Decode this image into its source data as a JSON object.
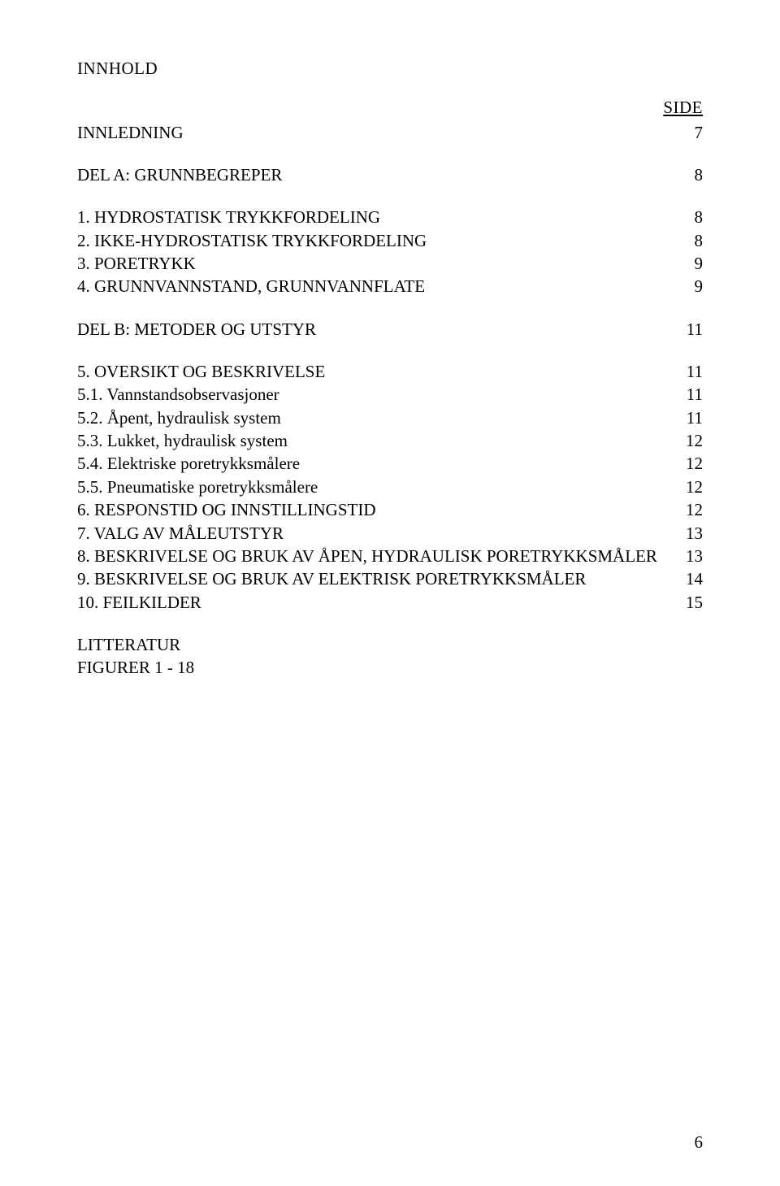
{
  "title": "INNHOLD",
  "side_label": "SIDE",
  "toc": {
    "innledning": {
      "label": "INNLEDNING",
      "page": "7"
    },
    "del_a": {
      "label": "DEL A:  GRUNNBEGREPER",
      "page": "8"
    },
    "a1": {
      "label": "1. HYDROSTATISK TRYKKFORDELING",
      "page": "8"
    },
    "a2": {
      "label": "2. IKKE-HYDROSTATISK TRYKKFORDELING",
      "page": "8"
    },
    "a3": {
      "label": "3. PORETRYKK",
      "page": "9"
    },
    "a4": {
      "label": "4. GRUNNVANNSTAND, GRUNNVANNFLATE",
      "page": "9"
    },
    "del_b": {
      "label": "DEL B:  METODER OG UTSTYR",
      "page": "11"
    },
    "b5": {
      "label": "5. OVERSIKT OG BESKRIVELSE",
      "page": "11"
    },
    "b5_1": {
      "label": "5.1. Vannstandsobservasjoner",
      "page": "11"
    },
    "b5_2": {
      "label": "5.2. Åpent, hydraulisk system",
      "page": "11"
    },
    "b5_3": {
      "label": "5.3. Lukket, hydraulisk system",
      "page": "12"
    },
    "b5_4": {
      "label": "5.4. Elektriske poretrykksmålere",
      "page": "12"
    },
    "b5_5": {
      "label": "5.5. Pneumatiske poretrykksmålere",
      "page": "12"
    },
    "b6": {
      "label": "6. RESPONSTID OG INNSTILLINGSTID",
      "page": "12"
    },
    "b7": {
      "label": "7. VALG AV MÅLEUTSTYR",
      "page": "13"
    },
    "b8": {
      "label": "8. BESKRIVELSE OG BRUK AV ÅPEN, HYDRAULISK PORETRYKKSMÅLER",
      "page": "13"
    },
    "b9": {
      "label": "9. BESKRIVELSE OG BRUK AV ELEKTRISK PORETRYKKSMÅLER",
      "page": "14"
    },
    "b10": {
      "label": "10. FEILKILDER",
      "page": "15"
    }
  },
  "litteratur": "LITTERATUR",
  "figurer": "FIGURER 1 - 18",
  "footer_page": "6"
}
